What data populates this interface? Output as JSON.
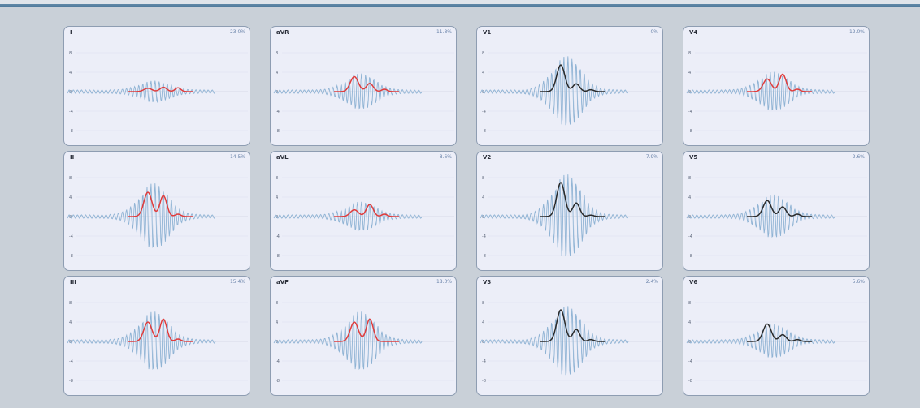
{
  "colors": {
    "background": "#c9d0d8",
    "panel_bg": "#eceef8",
    "panel_border": "#8e9db2",
    "signal": "#8fb3d4",
    "envelope_highlight": "#e03c3c",
    "envelope_default": "#2a2a2a"
  },
  "chart_data": [
    {
      "type": "line",
      "title": "I",
      "annotation": "23.0%",
      "y_ticks": [
        8,
        4,
        0,
        -4,
        -8
      ],
      "ylim": [
        -10,
        10
      ],
      "envelope_color": "red",
      "signal_amp": 1.6,
      "envelope_peaks": [
        0.7,
        0.9,
        0.8
      ]
    },
    {
      "type": "line",
      "title": "aVR",
      "annotation": "11.8%",
      "y_ticks": [
        8,
        4,
        0,
        -4,
        -8
      ],
      "ylim": [
        -10,
        10
      ],
      "envelope_color": "red",
      "signal_amp": 2.9,
      "envelope_peaks": [
        3.1,
        1.7,
        0.5
      ]
    },
    {
      "type": "line",
      "title": "V1",
      "annotation": "0%",
      "y_ticks": [
        8,
        4,
        0,
        -4,
        -8
      ],
      "ylim": [
        -10,
        10
      ],
      "envelope_color": "black",
      "signal_amp": 6.0,
      "envelope_peaks": [
        5.5,
        1.6,
        0.4
      ]
    },
    {
      "type": "line",
      "title": "V4",
      "annotation": "12.0%",
      "y_ticks": [
        8,
        4,
        0,
        -4,
        -8
      ],
      "ylim": [
        -10,
        10
      ],
      "envelope_color": "red",
      "signal_amp": 3.2,
      "envelope_peaks": [
        2.6,
        3.6,
        0.5
      ]
    },
    {
      "type": "line",
      "title": "II",
      "annotation": "14.5%",
      "y_ticks": [
        8,
        4,
        0,
        -4,
        -8
      ],
      "ylim": [
        -10,
        10
      ],
      "envelope_color": "red",
      "signal_amp": 5.6,
      "envelope_peaks": [
        5.0,
        4.3,
        0.5
      ]
    },
    {
      "type": "line",
      "title": "aVL",
      "annotation": "8.6%",
      "y_ticks": [
        8,
        4,
        0,
        -4,
        -8
      ],
      "ylim": [
        -10,
        10
      ],
      "envelope_color": "red",
      "signal_amp": 2.3,
      "envelope_peaks": [
        1.4,
        2.5,
        0.5
      ]
    },
    {
      "type": "line",
      "title": "V2",
      "annotation": "7.9%",
      "y_ticks": [
        8,
        4,
        0,
        -4,
        -8
      ],
      "ylim": [
        -10,
        10
      ],
      "envelope_color": "black",
      "signal_amp": 7.2,
      "envelope_peaks": [
        7.0,
        2.8,
        0.3
      ]
    },
    {
      "type": "line",
      "title": "V5",
      "annotation": "2.6%",
      "y_ticks": [
        8,
        4,
        0,
        -4,
        -8
      ],
      "ylim": [
        -10,
        10
      ],
      "envelope_color": "black",
      "signal_amp": 3.6,
      "envelope_peaks": [
        3.3,
        2.0,
        0.5
      ]
    },
    {
      "type": "line",
      "title": "III",
      "annotation": "15.4%",
      "y_ticks": [
        8,
        4,
        0,
        -4,
        -8
      ],
      "ylim": [
        -10,
        10
      ],
      "envelope_color": "red",
      "signal_amp": 5.0,
      "envelope_peaks": [
        4.0,
        4.6,
        0.5
      ]
    },
    {
      "type": "line",
      "title": "aVF",
      "annotation": "18.3%",
      "y_ticks": [
        8,
        4,
        0,
        -4,
        -8
      ],
      "ylim": [
        -10,
        10
      ],
      "envelope_color": "red",
      "signal_amp": 5.0,
      "envelope_peaks": [
        4.0,
        4.6,
        0.0
      ]
    },
    {
      "type": "line",
      "title": "V3",
      "annotation": "2.4%",
      "y_ticks": [
        8,
        4,
        0,
        -4,
        -8
      ],
      "ylim": [
        -10,
        10
      ],
      "envelope_color": "black",
      "signal_amp": 6.0,
      "envelope_peaks": [
        6.5,
        2.5,
        0.4
      ]
    },
    {
      "type": "line",
      "title": "V6",
      "annotation": "5.6%",
      "y_ticks": [
        8,
        4,
        0,
        -4,
        -8
      ],
      "ylim": [
        -10,
        10
      ],
      "envelope_color": "black",
      "signal_amp": 2.7,
      "envelope_peaks": [
        3.6,
        1.4,
        0.4
      ]
    }
  ]
}
